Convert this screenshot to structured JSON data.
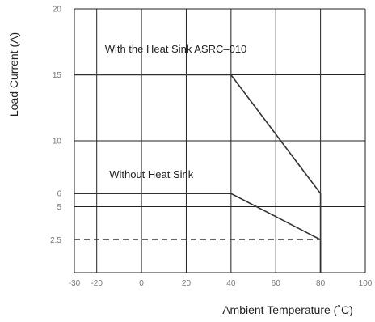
{
  "chart_data": {
    "type": "line",
    "xlabel": "Ambient Temperature (˚C)",
    "ylabel": "Load  Current (A)",
    "xlim": [
      -30,
      100
    ],
    "ylim": [
      0,
      20
    ],
    "x_ticks": [
      {
        "value": -30,
        "label": "-30"
      },
      {
        "value": -20,
        "label": "-20"
      },
      {
        "value": 0,
        "label": "0"
      },
      {
        "value": 20,
        "label": "20"
      },
      {
        "value": 40,
        "label": "40"
      },
      {
        "value": 60,
        "label": "60"
      },
      {
        "value": 80,
        "label": "80"
      },
      {
        "value": 100,
        "label": "100"
      }
    ],
    "y_ticks": [
      {
        "value": 2.5,
        "label": "2.5"
      },
      {
        "value": 5,
        "label": "5"
      },
      {
        "value": 6,
        "label": "6"
      },
      {
        "value": 10,
        "label": "10"
      },
      {
        "value": 15,
        "label": "15"
      },
      {
        "value": 20,
        "label": "20"
      }
    ],
    "grid_x": [
      -20,
      0,
      20,
      40,
      60,
      80,
      100
    ],
    "grid_y": [
      0,
      5,
      10,
      15,
      20
    ],
    "series": [
      {
        "name": "With the Heat Sink ASRC–010",
        "points": [
          [
            -30,
            15
          ],
          [
            40,
            15
          ],
          [
            80,
            6
          ],
          [
            80,
            0
          ]
        ]
      },
      {
        "name": "Without Heat Sink",
        "points": [
          [
            -30,
            6
          ],
          [
            40,
            6
          ],
          [
            80,
            2.5
          ],
          [
            80,
            0
          ]
        ]
      }
    ],
    "reference_line": {
      "y": 2.5,
      "x_from": -30,
      "x_to": 80,
      "style": "dashed"
    },
    "annotations": [
      {
        "text": "With the Heat Sink ASRC–010",
        "x": -20,
        "y": 16.8
      },
      {
        "text": "Without Heat Sink",
        "x": -18,
        "y": 7.3
      }
    ]
  }
}
